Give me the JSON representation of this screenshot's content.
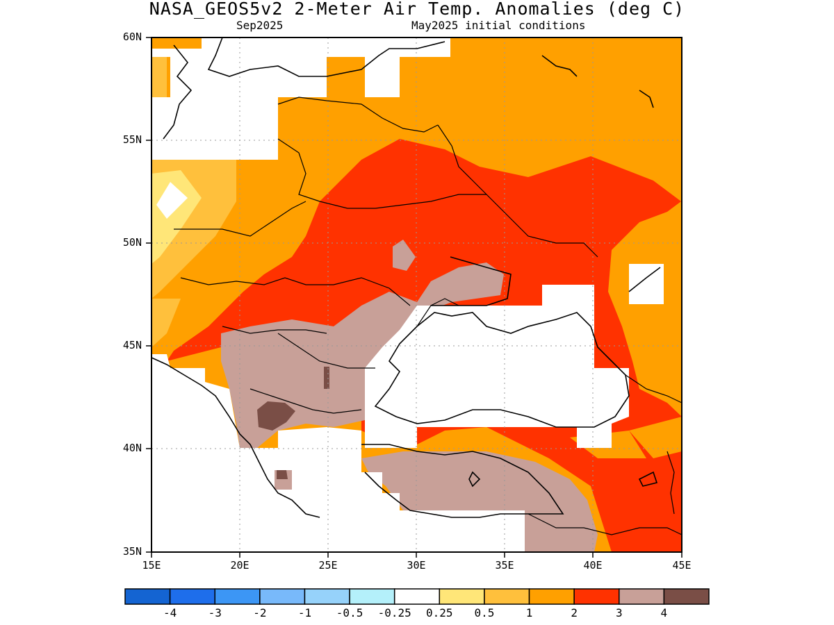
{
  "title": "NASA_GEOS5v2 2-Meter Air Temp. Anomalies (deg C)",
  "subtitle_left": "Sep2025",
  "subtitle_right": "May2025 initial conditions",
  "map": {
    "lat_labels": [
      "60N",
      "55N",
      "50N",
      "45N",
      "40N",
      "35N"
    ],
    "lon_labels": [
      "15E",
      "20E",
      "25E",
      "30E",
      "35E",
      "40E",
      "45E"
    ],
    "extent": {
      "lon_min": 15,
      "lon_max": 45,
      "lat_min": 35,
      "lat_max": 60
    }
  },
  "colorbar": {
    "colors": [
      "#1464d2",
      "#1e6eeb",
      "#3c96f5",
      "#78b9fa",
      "#96d2fa",
      "#b4f0fa",
      "#ffffff",
      "#ffe678",
      "#ffc03c",
      "#ffa000",
      "#ff3200",
      "#c8a098",
      "#7a4e46"
    ],
    "labels": [
      "-4",
      "-3",
      "-2",
      "-1",
      "-0.5",
      "-0.25",
      "0.25",
      "0.5",
      "1",
      "2",
      "3",
      "4"
    ]
  }
}
